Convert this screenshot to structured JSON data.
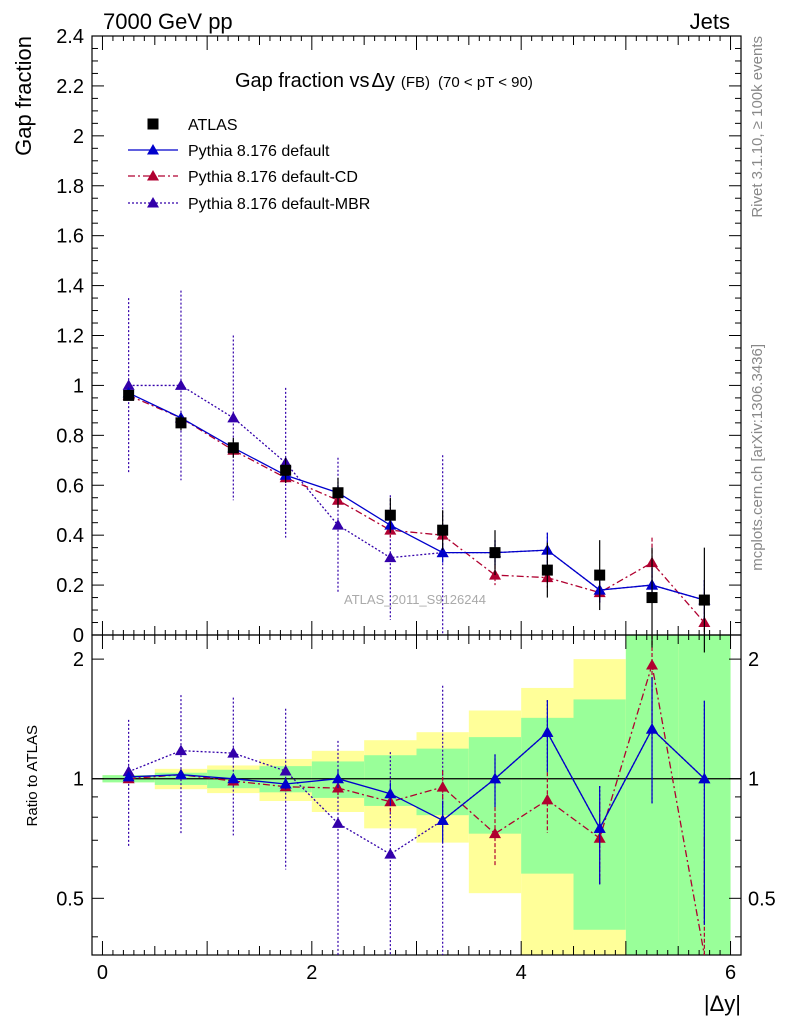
{
  "header": {
    "left": "7000 GeV pp",
    "right": "Jets"
  },
  "side_labels": {
    "upper": "Rivet 3.1.10, ≥ 100k events",
    "lower": "mcplots.cern.ch [arXiv:1306.3436]"
  },
  "watermark": "ATLAS_2011_S9126244",
  "chart_data": {
    "type": "line",
    "title": "Gap fraction vs",
    "title_symbol": "Δy",
    "title_tag": "(FB)",
    "title_cut": "(70 < pT <  90)",
    "ylabel": "Gap fraction",
    "ratio_ylabel": "Ratio to ATLAS",
    "xlabel": "|Δy|",
    "xlim": [
      -0.1,
      6.1
    ],
    "ylim": [
      0,
      2.4
    ],
    "ratio_ylim": [
      0.36,
      2.3
    ],
    "ratio_scale": "log",
    "x_ticks": [
      "0",
      "2",
      "4",
      "6"
    ],
    "y_ticks": [
      "0",
      "0.2",
      "0.4",
      "0.6",
      "0.8",
      "1",
      "1.2",
      "1.4",
      "1.6",
      "1.8",
      "2",
      "2.2",
      "2.4"
    ],
    "ratio_ticks": [
      "0.5",
      "1",
      "2"
    ],
    "legend_position": "top-left",
    "x": [
      0.25,
      0.75,
      1.25,
      1.75,
      2.25,
      2.75,
      3.25,
      3.75,
      4.25,
      4.75,
      5.25,
      5.75
    ],
    "data": {
      "name": "ATLAS",
      "color": "#000000",
      "values": [
        0.96,
        0.85,
        0.75,
        0.66,
        0.57,
        0.48,
        0.42,
        0.33,
        0.26,
        0.24,
        0.15,
        0.14
      ],
      "band_inner": [
        0.02,
        0.03,
        0.04,
        0.05,
        0.06,
        0.07,
        0.08,
        0.09,
        0.11,
        0.14,
        0.2,
        0.21
      ],
      "band_outer": [
        0.02,
        0.05,
        0.06,
        0.08,
        0.1,
        0.12,
        0.13,
        0.16,
        0.18,
        0.24,
        0.31,
        0.4
      ]
    },
    "series": [
      {
        "name": "Pythia 8.176 default",
        "color": "#0000cc",
        "dash": "",
        "values": [
          0.97,
          0.87,
          0.75,
          0.64,
          0.57,
          0.44,
          0.33,
          0.33,
          0.34,
          0.18,
          0.2,
          0.14
        ],
        "errors": [
          0.01,
          0.01,
          0.02,
          0.02,
          0.03,
          0.03,
          0.04,
          0.05,
          0.07,
          0.05,
          0.07,
          0.08
        ]
      },
      {
        "name": "Pythia 8.176 default-CD",
        "color": "#b00030",
        "dash": "7,3,2,3",
        "values": [
          0.96,
          0.87,
          0.74,
          0.63,
          0.54,
          0.42,
          0.4,
          0.24,
          0.23,
          0.17,
          0.29,
          0.05
        ],
        "errors": [
          0.01,
          0.01,
          0.02,
          0.02,
          0.03,
          0.03,
          0.04,
          0.04,
          0.04,
          0.04,
          0.1,
          0.05
        ]
      },
      {
        "name": "Pythia 8.176 default-MBR",
        "color": "#3300aa",
        "dash": "2,2",
        "values": [
          1.0,
          1.0,
          0.87,
          0.69,
          0.44,
          0.31,
          0.33,
          0.33,
          0.34,
          0.18,
          0.2,
          0.14
        ],
        "errors": [
          0.35,
          0.38,
          0.33,
          0.3,
          0.27,
          0.25,
          0.39,
          0.05,
          0.07,
          0.05,
          0.07,
          0.08
        ]
      }
    ]
  }
}
